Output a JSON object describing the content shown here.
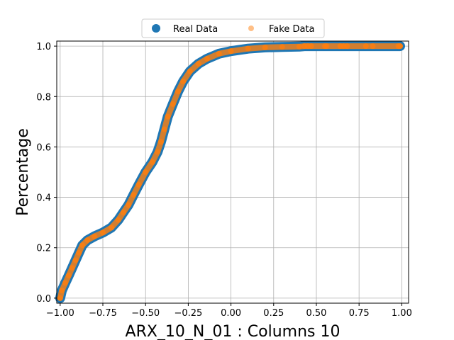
{
  "chart_data": {
    "type": "scatter",
    "xlabel": "ARX_10_N_01 : Columns 10",
    "ylabel": "Percentage",
    "xlim": [
      -1.02,
      1.04
    ],
    "ylim": [
      -0.02,
      1.02
    ],
    "xticks": [
      -1.0,
      -0.75,
      -0.5,
      -0.25,
      0.0,
      0.25,
      0.5,
      0.75,
      1.0
    ],
    "xtick_labels": [
      "−1.00",
      "−0.75",
      "−0.50",
      "−0.25",
      "0.00",
      "0.25",
      "0.50",
      "0.75",
      "1.00"
    ],
    "yticks": [
      0.0,
      0.2,
      0.4,
      0.6,
      0.8,
      1.0
    ],
    "ytick_labels": [
      "0.0",
      "0.2",
      "0.4",
      "0.6",
      "0.8",
      "1.0"
    ],
    "grid": true,
    "legend": {
      "placement": "top-center",
      "entries": [
        {
          "label": "Real Data",
          "color": "#1f77b4"
        },
        {
          "label": "Fake Data",
          "color": "#ff7f0e"
        }
      ]
    },
    "series": [
      {
        "name": "Real Data",
        "color": "#1f77b4",
        "marker": "large-circle",
        "points": [
          [
            -1.0,
            0.0
          ],
          [
            -0.99,
            0.03
          ],
          [
            -0.97,
            0.06
          ],
          [
            -0.95,
            0.09
          ],
          [
            -0.93,
            0.12
          ],
          [
            -0.91,
            0.15
          ],
          [
            -0.89,
            0.18
          ],
          [
            -0.87,
            0.21
          ],
          [
            -0.84,
            0.23
          ],
          [
            -0.8,
            0.245
          ],
          [
            -0.75,
            0.26
          ],
          [
            -0.7,
            0.28
          ],
          [
            -0.66,
            0.31
          ],
          [
            -0.63,
            0.34
          ],
          [
            -0.6,
            0.37
          ],
          [
            -0.57,
            0.41
          ],
          [
            -0.54,
            0.45
          ],
          [
            -0.5,
            0.5
          ],
          [
            -0.46,
            0.54
          ],
          [
            -0.43,
            0.58
          ],
          [
            -0.41,
            0.62
          ],
          [
            -0.39,
            0.67
          ],
          [
            -0.37,
            0.72
          ],
          [
            -0.34,
            0.77
          ],
          [
            -0.31,
            0.82
          ],
          [
            -0.28,
            0.86
          ],
          [
            -0.24,
            0.9
          ],
          [
            -0.19,
            0.93
          ],
          [
            -0.14,
            0.95
          ],
          [
            -0.07,
            0.97
          ],
          [
            0.0,
            0.98
          ],
          [
            0.1,
            0.99
          ],
          [
            0.2,
            0.995
          ],
          [
            0.3,
            0.997
          ],
          [
            0.4,
            0.998
          ],
          [
            0.43,
            1.0
          ],
          [
            0.45,
            1.0
          ],
          [
            0.47,
            1.0
          ],
          [
            0.55,
            1.0
          ],
          [
            0.56,
            1.0
          ],
          [
            0.64,
            1.0
          ],
          [
            0.66,
            1.0
          ],
          [
            0.68,
            1.0
          ],
          [
            0.79,
            1.0
          ],
          [
            0.83,
            1.0
          ],
          [
            0.98,
            1.0
          ],
          [
            0.99,
            1.0
          ]
        ]
      },
      {
        "name": "Fake Data",
        "color": "#ff7f0e",
        "marker": "small-circle",
        "points": [
          [
            -1.0,
            0.0
          ],
          [
            -0.99,
            0.03
          ],
          [
            -0.97,
            0.06
          ],
          [
            -0.95,
            0.09
          ],
          [
            -0.93,
            0.12
          ],
          [
            -0.91,
            0.15
          ],
          [
            -0.89,
            0.18
          ],
          [
            -0.87,
            0.21
          ],
          [
            -0.84,
            0.23
          ],
          [
            -0.8,
            0.245
          ],
          [
            -0.75,
            0.26
          ],
          [
            -0.7,
            0.28
          ],
          [
            -0.66,
            0.31
          ],
          [
            -0.63,
            0.34
          ],
          [
            -0.6,
            0.37
          ],
          [
            -0.57,
            0.41
          ],
          [
            -0.54,
            0.45
          ],
          [
            -0.5,
            0.5
          ],
          [
            -0.46,
            0.54
          ],
          [
            -0.43,
            0.58
          ],
          [
            -0.41,
            0.62
          ],
          [
            -0.39,
            0.67
          ],
          [
            -0.37,
            0.72
          ],
          [
            -0.34,
            0.77
          ],
          [
            -0.31,
            0.82
          ],
          [
            -0.28,
            0.86
          ],
          [
            -0.24,
            0.9
          ],
          [
            -0.19,
            0.93
          ],
          [
            -0.14,
            0.95
          ],
          [
            -0.07,
            0.97
          ],
          [
            0.0,
            0.98
          ],
          [
            0.1,
            0.99
          ],
          [
            0.2,
            0.995
          ],
          [
            0.3,
            0.997
          ],
          [
            0.4,
            0.998
          ],
          [
            0.43,
            1.0
          ],
          [
            0.45,
            1.0
          ],
          [
            0.47,
            1.0
          ],
          [
            0.55,
            1.0
          ],
          [
            0.56,
            1.0
          ],
          [
            0.64,
            1.0
          ],
          [
            0.66,
            1.0
          ],
          [
            0.68,
            1.0
          ],
          [
            0.79,
            1.0
          ],
          [
            0.83,
            1.0
          ],
          [
            0.98,
            1.0
          ],
          [
            0.99,
            1.0
          ]
        ]
      }
    ]
  }
}
